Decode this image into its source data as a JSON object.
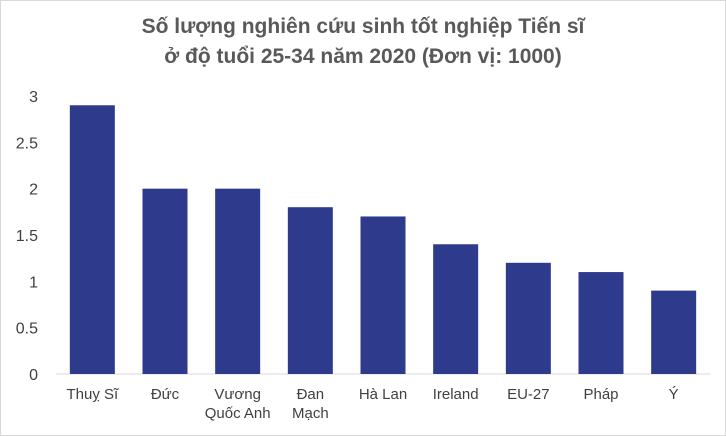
{
  "chart_data": {
    "type": "bar",
    "title_line1": "Số lượng nghiên cứu sinh tốt nghiệp Tiến sĩ",
    "title_line2": "ở độ tuổi 25-34 năm 2020 (Đơn vị: 1000)",
    "categories": [
      [
        "Thuỵ Sĩ"
      ],
      [
        "Đức"
      ],
      [
        "Vương",
        "Quốc Anh"
      ],
      [
        "Đan",
        "Mạch"
      ],
      [
        "Hà Lan"
      ],
      [
        "Ireland"
      ],
      [
        "EU-27"
      ],
      [
        "Pháp"
      ],
      [
        "Ý"
      ]
    ],
    "values": [
      2.9,
      2.0,
      2.0,
      1.8,
      1.7,
      1.4,
      1.2,
      1.1,
      0.9
    ],
    "yticks": [
      "0",
      "0.5",
      "1",
      "1.5",
      "2",
      "2.5",
      "3"
    ],
    "ylim": [
      0,
      3
    ],
    "bar_color": "#2e3a8c",
    "grid": false
  }
}
